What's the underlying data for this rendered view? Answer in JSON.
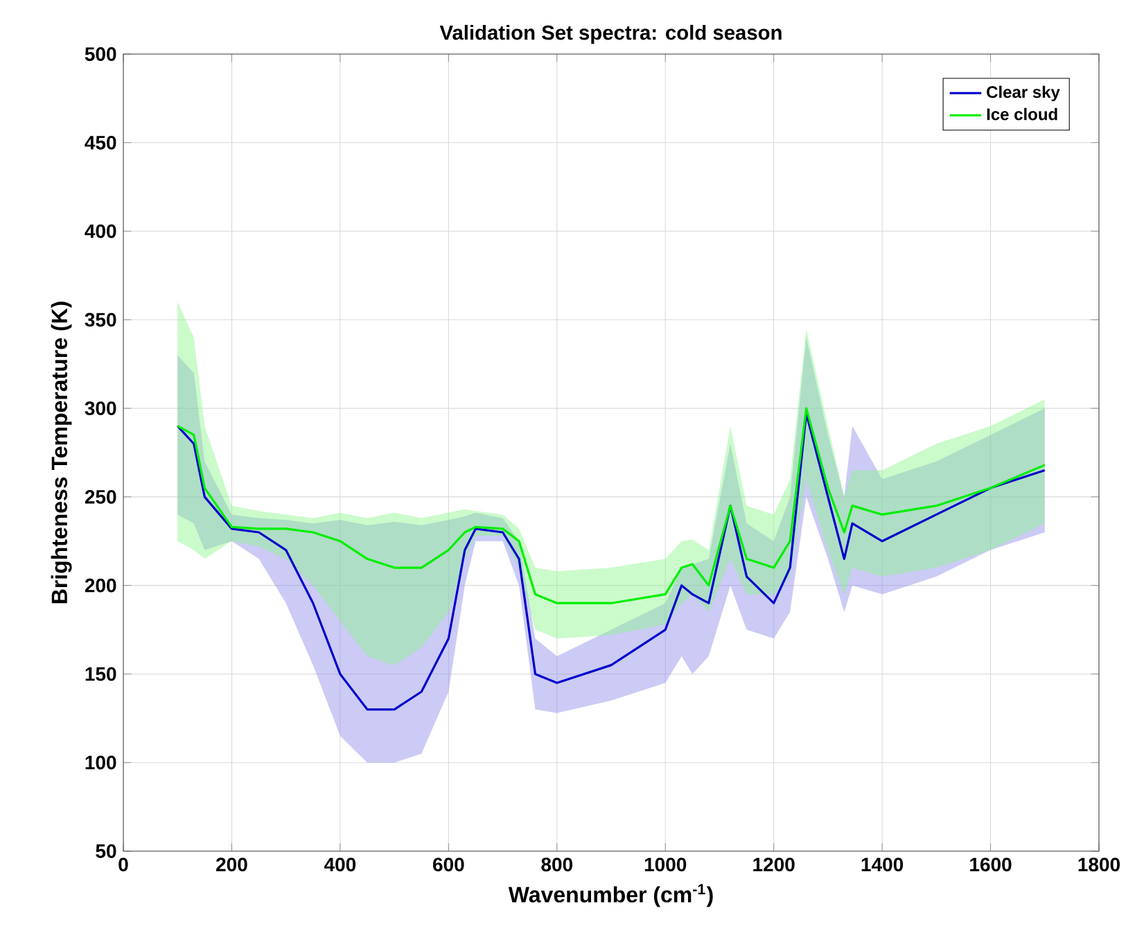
{
  "chart_data": {
    "type": "line",
    "title": "Validation Set spectra: cold season",
    "xlabel": "Wavenumber (cm$^{-1}$)",
    "ylabel": "Brighteness Temperature (K)",
    "xlim": [
      0,
      1800
    ],
    "ylim": [
      50,
      500
    ],
    "xticks": [
      0,
      200,
      400,
      600,
      800,
      1000,
      1200,
      1400,
      1600,
      1800
    ],
    "yticks": [
      50,
      100,
      150,
      200,
      250,
      300,
      350,
      400,
      450,
      500
    ],
    "grid": true,
    "legend": "top right",
    "series": [
      {
        "name": "Clear sky",
        "color": "#0000cc",
        "x": [
          100,
          130,
          150,
          200,
          250,
          300,
          350,
          400,
          450,
          500,
          550,
          600,
          630,
          650,
          700,
          730,
          760,
          800,
          900,
          1000,
          1030,
          1050,
          1080,
          1120,
          1150,
          1200,
          1230,
          1260,
          1300,
          1330,
          1345,
          1400,
          1500,
          1600,
          1700
        ],
        "values": [
          290,
          280,
          250,
          232,
          230,
          220,
          190,
          150,
          130,
          130,
          140,
          170,
          220,
          232,
          230,
          215,
          150,
          145,
          155,
          175,
          200,
          195,
          190,
          245,
          205,
          190,
          210,
          297,
          250,
          215,
          235,
          225,
          240,
          255,
          265
        ],
        "lower": [
          240,
          235,
          220,
          225,
          215,
          190,
          155,
          115,
          100,
          100,
          105,
          140,
          200,
          225,
          225,
          200,
          130,
          128,
          135,
          145,
          160,
          150,
          160,
          200,
          175,
          170,
          185,
          250,
          215,
          185,
          200,
          195,
          205,
          220,
          230
        ],
        "upper": [
          330,
          320,
          270,
          240,
          238,
          237,
          235,
          237,
          234,
          236,
          234,
          237,
          239,
          241,
          238,
          225,
          170,
          160,
          175,
          190,
          210,
          212,
          215,
          280,
          235,
          225,
          250,
          340,
          285,
          250,
          290,
          260,
          270,
          285,
          300
        ]
      },
      {
        "name": "Ice cloud",
        "color": "#00ee00",
        "x": [
          100,
          130,
          150,
          200,
          250,
          300,
          350,
          400,
          450,
          500,
          550,
          600,
          630,
          650,
          700,
          730,
          760,
          800,
          900,
          1000,
          1030,
          1050,
          1080,
          1120,
          1150,
          1200,
          1230,
          1260,
          1300,
          1330,
          1345,
          1400,
          1500,
          1600,
          1700
        ],
        "values": [
          290,
          285,
          255,
          233,
          232,
          232,
          230,
          225,
          215,
          210,
          210,
          220,
          230,
          233,
          232,
          225,
          195,
          190,
          190,
          195,
          210,
          212,
          200,
          245,
          215,
          210,
          225,
          300,
          255,
          230,
          245,
          240,
          245,
          255,
          268
        ],
        "lower": [
          225,
          220,
          215,
          225,
          222,
          215,
          200,
          180,
          160,
          155,
          165,
          185,
          215,
          228,
          228,
          210,
          175,
          170,
          172,
          178,
          190,
          195,
          185,
          215,
          195,
          195,
          205,
          260,
          220,
          195,
          210,
          205,
          210,
          220,
          235
        ],
        "upper": [
          360,
          340,
          290,
          245,
          242,
          240,
          238,
          241,
          238,
          241,
          238,
          241,
          243,
          242,
          240,
          232,
          210,
          208,
          210,
          215,
          225,
          226,
          220,
          290,
          245,
          240,
          260,
          345,
          290,
          250,
          265,
          265,
          280,
          290,
          305
        ]
      }
    ]
  }
}
